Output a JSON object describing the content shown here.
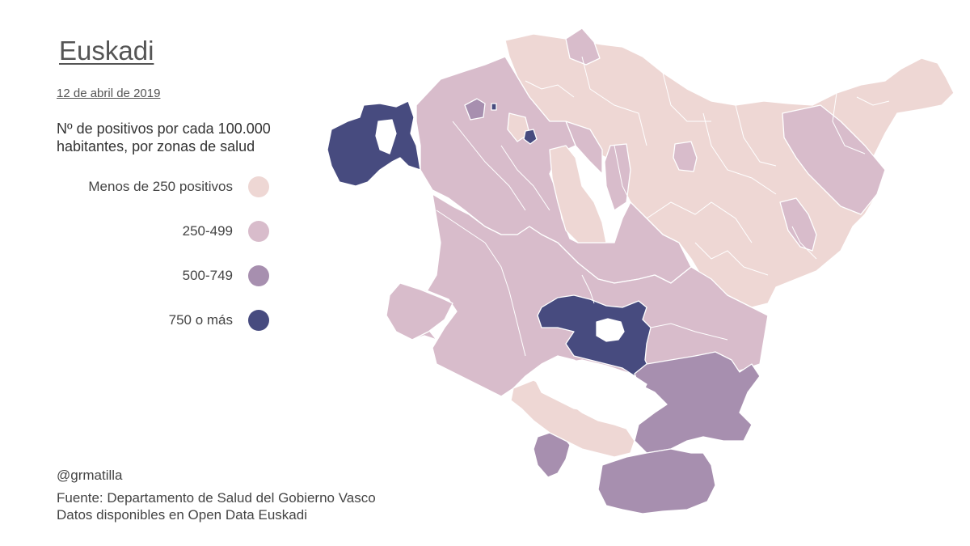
{
  "header": {
    "title": "Euskadi",
    "date": "12 de abril de 2019",
    "subtitle": "Nº de positivos por cada 100.000 habitantes, por zonas de salud"
  },
  "legend": {
    "items": [
      {
        "label": "Menos de 250 positivos",
        "color": "#eed7d4"
      },
      {
        "label": "250-499",
        "color": "#d8bccb"
      },
      {
        "label": "500-749",
        "color": "#a78faf"
      },
      {
        "label": "750 o más",
        "color": "#474b7f"
      }
    ]
  },
  "footer": {
    "credit": "@grmatilla",
    "source_line1": "Fuente: Departamento de Salud del Gobierno Vasco",
    "source_line2": "Datos disponibles en Open Data Euskadi"
  },
  "colors": {
    "background": "#ffffff",
    "border": "#ffffff"
  }
}
